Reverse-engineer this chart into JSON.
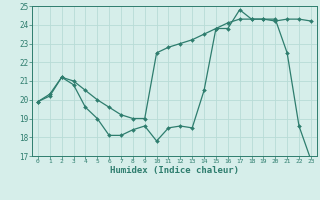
{
  "line1_x": [
    0,
    1,
    2,
    3,
    4,
    5,
    6,
    7,
    8,
    9,
    10,
    11,
    12,
    13,
    14,
    15,
    16,
    17,
    18,
    19,
    20,
    21,
    22,
    23
  ],
  "line1_y": [
    19.9,
    20.3,
    21.2,
    20.8,
    19.6,
    19.0,
    18.1,
    18.1,
    18.4,
    18.6,
    17.8,
    18.5,
    18.6,
    18.5,
    20.5,
    23.8,
    23.8,
    24.8,
    24.3,
    24.3,
    24.3,
    22.5,
    18.6,
    16.8
  ],
  "line2_x": [
    0,
    1,
    2,
    3,
    4,
    5,
    6,
    7,
    8,
    9,
    10,
    11,
    12,
    13,
    14,
    15,
    16,
    17,
    18,
    19,
    20,
    21,
    22,
    23
  ],
  "line2_y": [
    19.9,
    20.2,
    21.2,
    21.0,
    20.5,
    20.0,
    19.6,
    19.2,
    19.0,
    19.0,
    22.5,
    22.8,
    23.0,
    23.2,
    23.5,
    23.8,
    24.1,
    24.3,
    24.3,
    24.3,
    24.2,
    24.3,
    24.3,
    24.2
  ],
  "line_color": "#2e7d6e",
  "bg_color": "#d6eeea",
  "grid_color": "#b8dcd6",
  "xlabel": "Humidex (Indice chaleur)",
  "xlim": [
    -0.5,
    23.5
  ],
  "ylim": [
    17,
    25
  ],
  "yticks": [
    17,
    18,
    19,
    20,
    21,
    22,
    23,
    24,
    25
  ],
  "xticks": [
    0,
    1,
    2,
    3,
    4,
    5,
    6,
    7,
    8,
    9,
    10,
    11,
    12,
    13,
    14,
    15,
    16,
    17,
    18,
    19,
    20,
    21,
    22,
    23
  ]
}
